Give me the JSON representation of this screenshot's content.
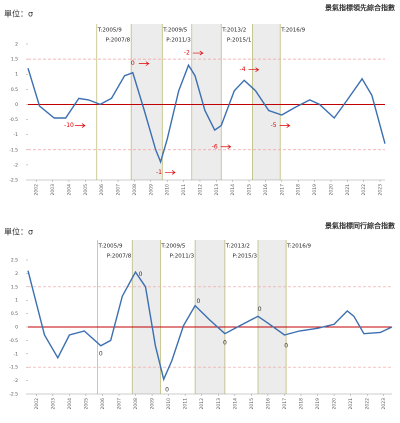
{
  "chart_data": [
    {
      "type": "line",
      "title": "景氣指標領先綜合指數",
      "unit": "單位：σ",
      "x": [
        2001.5,
        2002.2,
        2003.1,
        2003.8,
        2004.6,
        2005.2,
        2005.9,
        2006.6,
        2007.4,
        2007.9,
        2008.6,
        2009.3,
        2009.6,
        2010.0,
        2010.7,
        2011.3,
        2011.7,
        2012.3,
        2012.9,
        2013.3,
        2014.1,
        2014.7,
        2015.4,
        2016.2,
        2017.0,
        2017.8,
        2018.7,
        2019.3,
        2020.2,
        2021.0,
        2021.9,
        2022.5,
        2023.3
      ],
      "series": [
        {
          "color": "#3b6fb0",
          "values": [
            1.2,
            -0.05,
            -0.45,
            -0.45,
            0.2,
            0.15,
            0,
            0.2,
            0.95,
            1.05,
            -0.2,
            -1.5,
            -1.9,
            -1.15,
            0.45,
            1.3,
            0.95,
            -0.2,
            -0.85,
            -0.7,
            0.45,
            0.8,
            0.45,
            -0.2,
            -0.35,
            -0.1,
            0.15,
            0,
            -0.45,
            0.15,
            0.85,
            0.3,
            -1.3
          ]
        }
      ],
      "xlim": [
        2001.5,
        2023.3
      ],
      "xticks": [
        2002,
        2003,
        2004,
        2005,
        2006,
        2007,
        2008,
        2009,
        2010,
        2011,
        2012,
        2013,
        2014,
        2015,
        2016,
        2017,
        2018,
        2019,
        2020,
        2021,
        2022,
        2023
      ],
      "ylim": [
        -2.5,
        2
      ],
      "yticks": [
        2,
        1.5,
        1,
        0.5,
        0,
        -0.5,
        -1,
        -1.5,
        -2,
        -2.5
      ],
      "ref_lines": [
        1.5,
        -1.5
      ],
      "phases": [
        {
          "label": "T:2005/9",
          "x": 2005.7
        },
        {
          "label": "P:2007/8",
          "x": 2007.8
        },
        {
          "label": "T:2009/5",
          "x": 2009.7
        },
        {
          "label": "P:2011/3",
          "x": 2011.5
        },
        {
          "label": "T:2013/2",
          "x": 2013.3
        },
        {
          "label": "P:2015/1",
          "x": 2015.2
        },
        {
          "label": "T:2016/9",
          "x": 2016.9
        }
      ],
      "annotations": [
        {
          "text": "-10",
          "x": 2004.0,
          "y": -0.7
        },
        {
          "text": "0",
          "x": 2007.9,
          "y": 1.35
        },
        {
          "text": "-1",
          "x": 2009.5,
          "y": -2.25
        },
        {
          "text": "-2",
          "x": 2011.2,
          "y": 1.7
        },
        {
          "text": "-6",
          "x": 2012.9,
          "y": -1.4
        },
        {
          "text": "-4",
          "x": 2014.6,
          "y": 1.15
        },
        {
          "text": "-5",
          "x": 2016.5,
          "y": -0.7
        }
      ]
    },
    {
      "type": "line",
      "title": "景氣指標同行綜合指數",
      "unit": "單位：σ",
      "x": [
        2001.5,
        2002.5,
        2003.3,
        2004.0,
        2004.9,
        2005.9,
        2006.5,
        2007.2,
        2008.0,
        2008.6,
        2009.2,
        2009.7,
        2010.2,
        2010.9,
        2011.6,
        2012.5,
        2013.4,
        2014.3,
        2015.4,
        2016.1,
        2017.0,
        2017.9,
        2019.0,
        2020.0,
        2020.8,
        2021.2,
        2021.8,
        2022.8,
        2023.5
      ],
      "series": [
        {
          "color": "#3b6fb0",
          "values": [
            2.1,
            -0.3,
            -1.15,
            -0.3,
            -0.15,
            -0.7,
            -0.5,
            1.15,
            2.05,
            1.5,
            -0.7,
            -1.95,
            -1.25,
            0.05,
            0.8,
            0.25,
            -0.25,
            0.05,
            0.4,
            0.1,
            -0.3,
            -0.15,
            -0.05,
            0.1,
            0.6,
            0.4,
            -0.25,
            -0.2,
            0
          ]
        }
      ],
      "xlim": [
        2001.5,
        2023.5
      ],
      "xticks": [
        2002,
        2003,
        2004,
        2005,
        2006,
        2007,
        2008,
        2009,
        2010,
        2011,
        2012,
        2013,
        2014,
        2015,
        2016,
        2017,
        2018,
        2019,
        2020,
        2021,
        2022,
        2023
      ],
      "ylim": [
        -2.5,
        2.5
      ],
      "yticks": [
        2.5,
        2,
        1.5,
        1,
        0.5,
        0,
        -0.5,
        -1,
        -1.5,
        -2,
        -2.5
      ],
      "ref_lines": [
        1.5,
        -1.5
      ],
      "phases": [
        {
          "label": "T:2005/9",
          "x": 2005.7
        },
        {
          "label": "P:2007/8",
          "x": 2007.8
        },
        {
          "label": "T:2009/5",
          "x": 2009.5
        },
        {
          "label": "P:2011/3",
          "x": 2011.6
        },
        {
          "label": "T:2013/2",
          "x": 2013.4
        },
        {
          "label": "P:2015/3",
          "x": 2015.4
        },
        {
          "label": "T:2016/9",
          "x": 2017.1
        }
      ],
      "annotations": [
        {
          "text": "0",
          "x": 2005.9,
          "y": -1.0
        },
        {
          "text": "0",
          "x": 2008.3,
          "y": 1.95
        },
        {
          "text": "0",
          "x": 2009.9,
          "y": -2.35
        },
        {
          "text": "0",
          "x": 2011.8,
          "y": 0.95
        },
        {
          "text": "0",
          "x": 2013.4,
          "y": -0.6
        },
        {
          "text": "0",
          "x": 2015.5,
          "y": 0.65
        },
        {
          "text": "0",
          "x": 2017.1,
          "y": -0.7
        }
      ]
    }
  ]
}
